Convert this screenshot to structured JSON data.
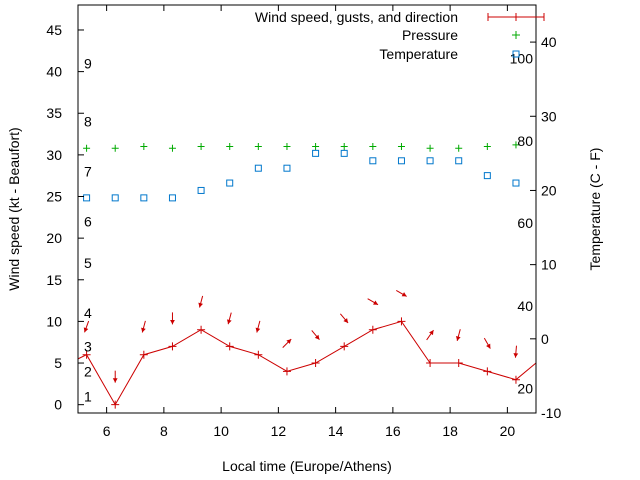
{
  "chart_data": {
    "type": "line",
    "title": "",
    "xlabel": "Local time (Europe/Athens)",
    "ylabel_left": "Wind speed (kt - Beaufort)",
    "ylabel_right": "Temperature (C - F)",
    "xlim": [
      5,
      21
    ],
    "ylim_left": [
      -1,
      48
    ],
    "ylim_right": [
      -10,
      45
    ],
    "x_ticks": [
      6,
      8,
      10,
      12,
      14,
      16,
      18,
      20
    ],
    "y_left_ticks": [
      0,
      5,
      10,
      15,
      20,
      25,
      30,
      35,
      40,
      45
    ],
    "y_right_ticks": [
      -10,
      0,
      10,
      20,
      30,
      40
    ],
    "beaufort_labels": [
      {
        "label": "1",
        "kt": 1
      },
      {
        "label": "2",
        "kt": 4
      },
      {
        "label": "3",
        "kt": 7
      },
      {
        "label": "4",
        "kt": 11
      },
      {
        "label": "5",
        "kt": 17
      },
      {
        "label": "6",
        "kt": 22
      },
      {
        "label": "7",
        "kt": 28
      },
      {
        "label": "8",
        "kt": 34
      },
      {
        "label": "9",
        "kt": 41
      }
    ],
    "fahrenheit_labels": [
      {
        "label": "20",
        "celsius": -6.7
      },
      {
        "label": "40",
        "celsius": 4.4
      },
      {
        "label": "60",
        "celsius": 15.6
      },
      {
        "label": "80",
        "celsius": 26.7
      },
      {
        "label": "100",
        "celsius": 37.8
      }
    ],
    "series": [
      {
        "name": "Wind speed, gusts, and direction",
        "color": "#cc0000",
        "x": [
          5.3,
          6.3,
          7.3,
          8.3,
          9.3,
          10.3,
          11.3,
          12.3,
          13.3,
          14.3,
          15.3,
          16.3,
          17.3,
          18.3,
          19.3,
          20.3
        ],
        "values": [
          6,
          0,
          6,
          7,
          9,
          7,
          6,
          4,
          5,
          7,
          9,
          10,
          5,
          5,
          4,
          3
        ],
        "direction_deg": [
          20,
          0,
          15,
          0,
          15,
          15,
          15,
          225,
          320,
          320,
          300,
          300,
          215,
          15,
          330,
          5
        ]
      },
      {
        "name": "Pressure",
        "color": "#00aa00",
        "x": [
          5.3,
          6.3,
          7.3,
          8.3,
          9.3,
          10.3,
          11.3,
          12.3,
          13.3,
          14.3,
          15.3,
          16.3,
          17.3,
          18.3,
          19.3,
          20.3
        ],
        "values": [
          30.8,
          30.8,
          31.0,
          30.8,
          31.0,
          31.0,
          31.0,
          31.0,
          31.0,
          31.0,
          31.0,
          31.0,
          30.8,
          30.8,
          31.0,
          31.2
        ]
      },
      {
        "name": "Temperature",
        "color": "#0077cc",
        "x": [
          5.3,
          6.3,
          7.3,
          8.3,
          9.3,
          10.3,
          11.3,
          12.3,
          13.3,
          14.3,
          15.3,
          16.3,
          17.3,
          18.3,
          19.3,
          20.3
        ],
        "values_celsius": [
          19,
          19,
          19,
          19,
          20,
          21,
          23,
          23,
          25,
          25,
          24,
          24,
          24,
          24,
          22,
          21
        ]
      }
    ],
    "legend_position": "top-right"
  }
}
